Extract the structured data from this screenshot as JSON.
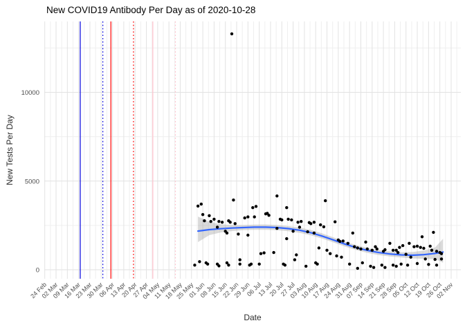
{
  "title": "New COVID19 Antibody Per Day as of 2020-10-28",
  "axes": {
    "x_label": "Date",
    "y_label": "New Tests Per Day"
  },
  "colors": {
    "smooth_line": "#3366FF",
    "ribbon": "#9E9E9E",
    "point": "#000000",
    "gridline_major": "#E2E2E2",
    "gridline_minor": "#EFEFEF",
    "axis_text": "#4D4D4D",
    "blue_line": "#0000DD",
    "red_line": "#FF0000",
    "pink_line": "#FFC0CB"
  },
  "chart_data": {
    "type": "scatter",
    "title": "New COVID19 Antibody Per Day as of 2020-10-28",
    "xlabel": "Date",
    "ylabel": "New Tests Per Day",
    "legend": "none",
    "grid": "on",
    "x_axis": {
      "start_date": "2020-02-24",
      "tick_interval_days": 7,
      "tick_labels": [
        "24 Feb",
        "02 Mar",
        "09 Mar",
        "16 Mar",
        "23 Mar",
        "30 Mar",
        "06 Apr",
        "13 Apr",
        "20 Apr",
        "27 Apr",
        "04 May",
        "11 May",
        "18 May",
        "25 May",
        "01 Jun",
        "08 Jun",
        "15 Jun",
        "22 Jun",
        "29 Jun",
        "06 Jul",
        "13 Jul",
        "20 Jul",
        "27 Jul",
        "03 Aug",
        "10 Aug",
        "17 Aug",
        "24 Aug",
        "31 Aug",
        "07 Sep",
        "14 Sep",
        "21 Sep",
        "28 Sep",
        "05 Oct",
        "12 Oct",
        "19 Oct",
        "26 Oct",
        "02 Nov"
      ]
    },
    "y_axis": {
      "tick_labels": [
        "0",
        "5000",
        "10000"
      ],
      "ticks": [
        0,
        5000,
        10000
      ],
      "minor_ticks": [
        2500,
        7500,
        12500
      ],
      "ylim": [
        -700,
        14000
      ]
    },
    "reference_lines": [
      {
        "date": "2020-03-17",
        "color": "#0000DD",
        "style": "solid"
      },
      {
        "date": "2020-03-31",
        "color": "#0000DD",
        "style": "dotted"
      },
      {
        "date": "2020-04-05",
        "color": "#FF0000",
        "style": "solid"
      },
      {
        "date": "2020-04-19",
        "color": "#FF0000",
        "style": "dotted"
      },
      {
        "date": "2020-05-01",
        "color": "#FFC0CB",
        "style": "solid"
      },
      {
        "date": "2020-05-15",
        "color": "#FFC0CB",
        "style": "dotted"
      }
    ],
    "points_format": [
      "date",
      "new_tests"
    ],
    "points": [
      [
        "2020-05-27",
        260
      ],
      [
        "2020-05-29",
        3590
      ],
      [
        "2020-05-30",
        455
      ],
      [
        "2020-05-31",
        3700
      ],
      [
        "2020-06-01",
        3110
      ],
      [
        "2020-06-02",
        2760
      ],
      [
        "2020-06-03",
        390
      ],
      [
        "2020-06-04",
        320
      ],
      [
        "2020-06-05",
        3050
      ],
      [
        "2020-06-06",
        2720
      ],
      [
        "2020-06-08",
        2850
      ],
      [
        "2020-06-10",
        2400
      ],
      [
        "2020-06-10",
        320
      ],
      [
        "2020-06-11",
        2720
      ],
      [
        "2020-06-11",
        220
      ],
      [
        "2020-06-13",
        2680
      ],
      [
        "2020-06-15",
        2170
      ],
      [
        "2020-06-16",
        2070
      ],
      [
        "2020-06-16",
        390
      ],
      [
        "2020-06-17",
        2760
      ],
      [
        "2020-06-17",
        260
      ],
      [
        "2020-06-18",
        2680
      ],
      [
        "2020-06-19",
        13300
      ],
      [
        "2020-06-20",
        3930
      ],
      [
        "2020-06-21",
        2600
      ],
      [
        "2020-06-23",
        2010
      ],
      [
        "2020-06-24",
        560
      ],
      [
        "2020-06-24",
        320
      ],
      [
        "2020-06-27",
        2920
      ],
      [
        "2020-06-29",
        2980
      ],
      [
        "2020-06-29",
        1950
      ],
      [
        "2020-06-30",
        260
      ],
      [
        "2020-07-01",
        320
      ],
      [
        "2020-07-02",
        3500
      ],
      [
        "2020-07-03",
        2980
      ],
      [
        "2020-07-04",
        3570
      ],
      [
        "2020-07-06",
        320
      ],
      [
        "2020-07-07",
        910
      ],
      [
        "2020-07-09",
        950
      ],
      [
        "2020-07-10",
        3150
      ],
      [
        "2020-07-11",
        3180
      ],
      [
        "2020-07-12",
        3070
      ],
      [
        "2020-07-15",
        970
      ],
      [
        "2020-07-17",
        4160
      ],
      [
        "2020-07-17",
        2330
      ],
      [
        "2020-07-19",
        2850
      ],
      [
        "2020-07-20",
        2810
      ],
      [
        "2020-07-21",
        320
      ],
      [
        "2020-07-22",
        260
      ],
      [
        "2020-07-23",
        3500
      ],
      [
        "2020-07-23",
        1750
      ],
      [
        "2020-07-24",
        2850
      ],
      [
        "2020-07-26",
        2810
      ],
      [
        "2020-07-27",
        2170
      ],
      [
        "2020-07-28",
        560
      ],
      [
        "2020-07-29",
        840
      ],
      [
        "2020-07-30",
        2680
      ],
      [
        "2020-07-31",
        2400
      ],
      [
        "2020-08-01",
        2720
      ],
      [
        "2020-08-04",
        200
      ],
      [
        "2020-08-05",
        2140
      ],
      [
        "2020-08-06",
        2660
      ],
      [
        "2020-08-07",
        2600
      ],
      [
        "2020-08-09",
        2680
      ],
      [
        "2020-08-09",
        2070
      ],
      [
        "2020-08-10",
        390
      ],
      [
        "2020-08-11",
        320
      ],
      [
        "2020-08-12",
        1230
      ],
      [
        "2020-08-13",
        2530
      ],
      [
        "2020-08-15",
        2420
      ],
      [
        "2020-08-16",
        3890
      ],
      [
        "2020-08-17",
        1100
      ],
      [
        "2020-08-19",
        910
      ],
      [
        "2020-08-22",
        2700
      ],
      [
        "2020-08-23",
        780
      ],
      [
        "2020-08-24",
        1680
      ],
      [
        "2020-08-25",
        1600
      ],
      [
        "2020-08-26",
        710
      ],
      [
        "2020-08-27",
        1620
      ],
      [
        "2020-08-30",
        1490
      ],
      [
        "2020-08-31",
        320
      ],
      [
        "2020-09-02",
        2070
      ],
      [
        "2020-09-03",
        1300
      ],
      [
        "2020-09-05",
        1230
      ],
      [
        "2020-09-05",
        80
      ],
      [
        "2020-09-07",
        1170
      ],
      [
        "2020-09-08",
        390
      ],
      [
        "2020-09-10",
        1560
      ],
      [
        "2020-09-11",
        1170
      ],
      [
        "2020-09-13",
        200
      ],
      [
        "2020-09-14",
        1100
      ],
      [
        "2020-09-15",
        130
      ],
      [
        "2020-09-16",
        1300
      ],
      [
        "2020-09-17",
        1170
      ],
      [
        "2020-09-20",
        260
      ],
      [
        "2020-09-21",
        1040
      ],
      [
        "2020-09-22",
        1130
      ],
      [
        "2020-09-22",
        130
      ],
      [
        "2020-09-25",
        1490
      ],
      [
        "2020-09-27",
        1100
      ],
      [
        "2020-09-27",
        260
      ],
      [
        "2020-09-29",
        1100
      ],
      [
        "2020-09-29",
        200
      ],
      [
        "2020-09-30",
        970
      ],
      [
        "2020-10-01",
        1260
      ],
      [
        "2020-10-02",
        320
      ],
      [
        "2020-10-03",
        1360
      ],
      [
        "2020-10-05",
        870
      ],
      [
        "2020-10-06",
        260
      ],
      [
        "2020-10-07",
        1490
      ],
      [
        "2020-10-08",
        710
      ],
      [
        "2020-10-10",
        1300
      ],
      [
        "2020-10-12",
        1330
      ],
      [
        "2020-10-12",
        350
      ],
      [
        "2020-10-14",
        1260
      ],
      [
        "2020-10-15",
        1860
      ],
      [
        "2020-10-16",
        1210
      ],
      [
        "2020-10-17",
        610
      ],
      [
        "2020-10-19",
        300
      ],
      [
        "2020-10-20",
        1330
      ],
      [
        "2020-10-21",
        1100
      ],
      [
        "2020-10-22",
        2110
      ],
      [
        "2020-10-23",
        580
      ],
      [
        "2020-10-24",
        1040
      ],
      [
        "2020-10-24",
        260
      ],
      [
        "2020-10-26",
        970
      ],
      [
        "2020-10-27",
        910
      ],
      [
        "2020-10-27",
        610
      ]
    ],
    "smooth": {
      "color": "#3366FF",
      "line": [
        [
          "2020-05-29",
          2180
        ],
        [
          "2020-06-05",
          2260
        ],
        [
          "2020-06-12",
          2310
        ],
        [
          "2020-06-19",
          2350
        ],
        [
          "2020-06-26",
          2380
        ],
        [
          "2020-07-03",
          2400
        ],
        [
          "2020-07-10",
          2400
        ],
        [
          "2020-07-17",
          2380
        ],
        [
          "2020-07-24",
          2320
        ],
        [
          "2020-07-31",
          2230
        ],
        [
          "2020-08-07",
          2090
        ],
        [
          "2020-08-14",
          1900
        ],
        [
          "2020-08-21",
          1680
        ],
        [
          "2020-08-28",
          1450
        ],
        [
          "2020-09-04",
          1250
        ],
        [
          "2020-09-11",
          1090
        ],
        [
          "2020-09-18",
          970
        ],
        [
          "2020-09-25",
          890
        ],
        [
          "2020-10-02",
          840
        ],
        [
          "2020-10-09",
          820
        ],
        [
          "2020-10-16",
          850
        ],
        [
          "2020-10-23",
          920
        ],
        [
          "2020-10-28",
          1000
        ]
      ],
      "ribbon": [
        [
          "2020-05-29",
          1560,
          3000
        ],
        [
          "2020-06-05",
          1950,
          2700
        ],
        [
          "2020-06-12",
          2100,
          2560
        ],
        [
          "2020-06-19",
          2180,
          2520
        ],
        [
          "2020-06-26",
          2230,
          2520
        ],
        [
          "2020-07-03",
          2250,
          2540
        ],
        [
          "2020-07-10",
          2250,
          2550
        ],
        [
          "2020-07-17",
          2230,
          2520
        ],
        [
          "2020-07-24",
          2170,
          2460
        ],
        [
          "2020-07-31",
          2080,
          2380
        ],
        [
          "2020-08-07",
          1940,
          2240
        ],
        [
          "2020-08-14",
          1760,
          2050
        ],
        [
          "2020-08-21",
          1540,
          1820
        ],
        [
          "2020-08-28",
          1310,
          1590
        ],
        [
          "2020-09-04",
          1110,
          1390
        ],
        [
          "2020-09-11",
          950,
          1230
        ],
        [
          "2020-09-18",
          830,
          1110
        ],
        [
          "2020-09-25",
          750,
          1030
        ],
        [
          "2020-10-02",
          690,
          990
        ],
        [
          "2020-10-09",
          640,
          1000
        ],
        [
          "2020-10-16",
          620,
          1080
        ],
        [
          "2020-10-23",
          600,
          1250
        ],
        [
          "2020-10-28",
          400,
          1750
        ]
      ]
    }
  }
}
